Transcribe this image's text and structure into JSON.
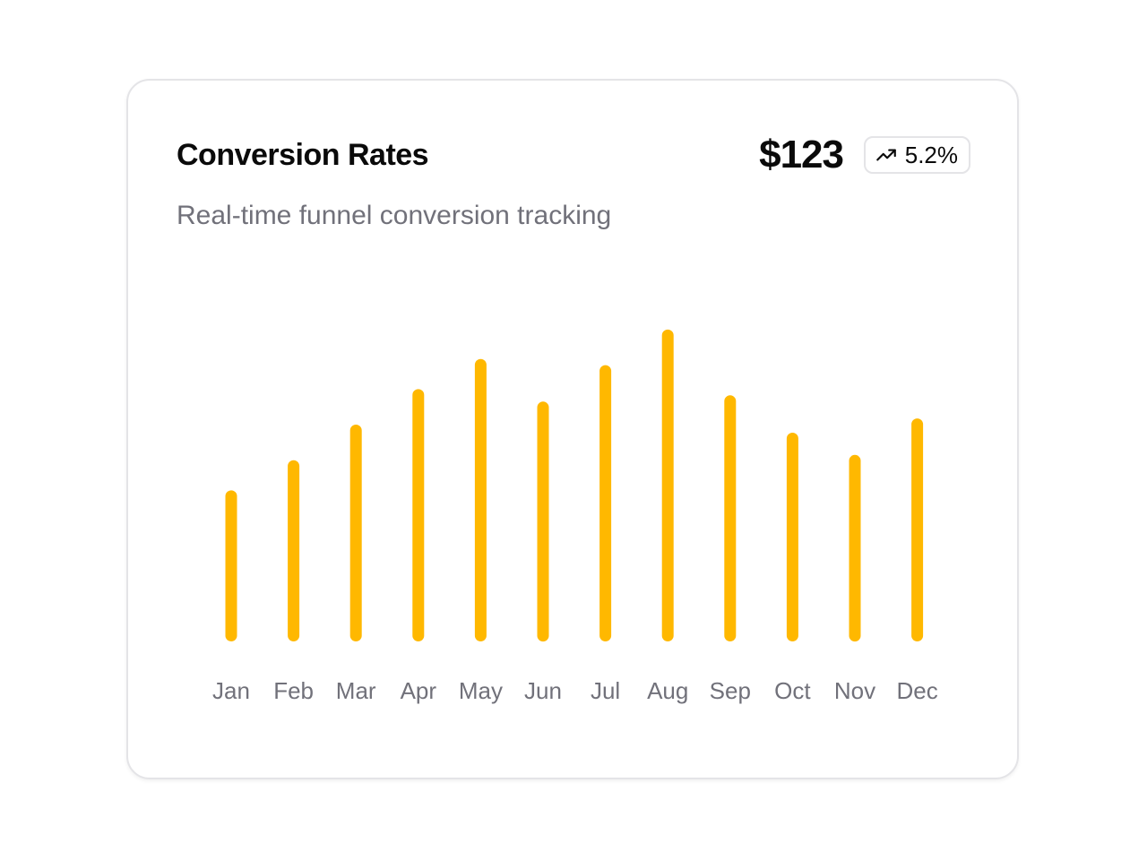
{
  "card": {
    "title": "Conversion Rates",
    "subtitle": "Real-time funnel conversion tracking",
    "value": "$123",
    "change": "5.2%",
    "change_icon": "trending-up-icon"
  },
  "colors": {
    "bar": "#ffb800",
    "label": "#71717a",
    "title": "#0a0a0a"
  },
  "chart_data": {
    "type": "bar",
    "categories": [
      "Jan",
      "Feb",
      "Mar",
      "Apr",
      "May",
      "Jun",
      "Jul",
      "Aug",
      "Sep",
      "Oct",
      "Nov",
      "Dec"
    ],
    "values": [
      170,
      204,
      244,
      284,
      318,
      270,
      311,
      351,
      277,
      235,
      210,
      251
    ],
    "ylim": [
      0,
      360
    ],
    "grid": false,
    "legend": "none"
  }
}
